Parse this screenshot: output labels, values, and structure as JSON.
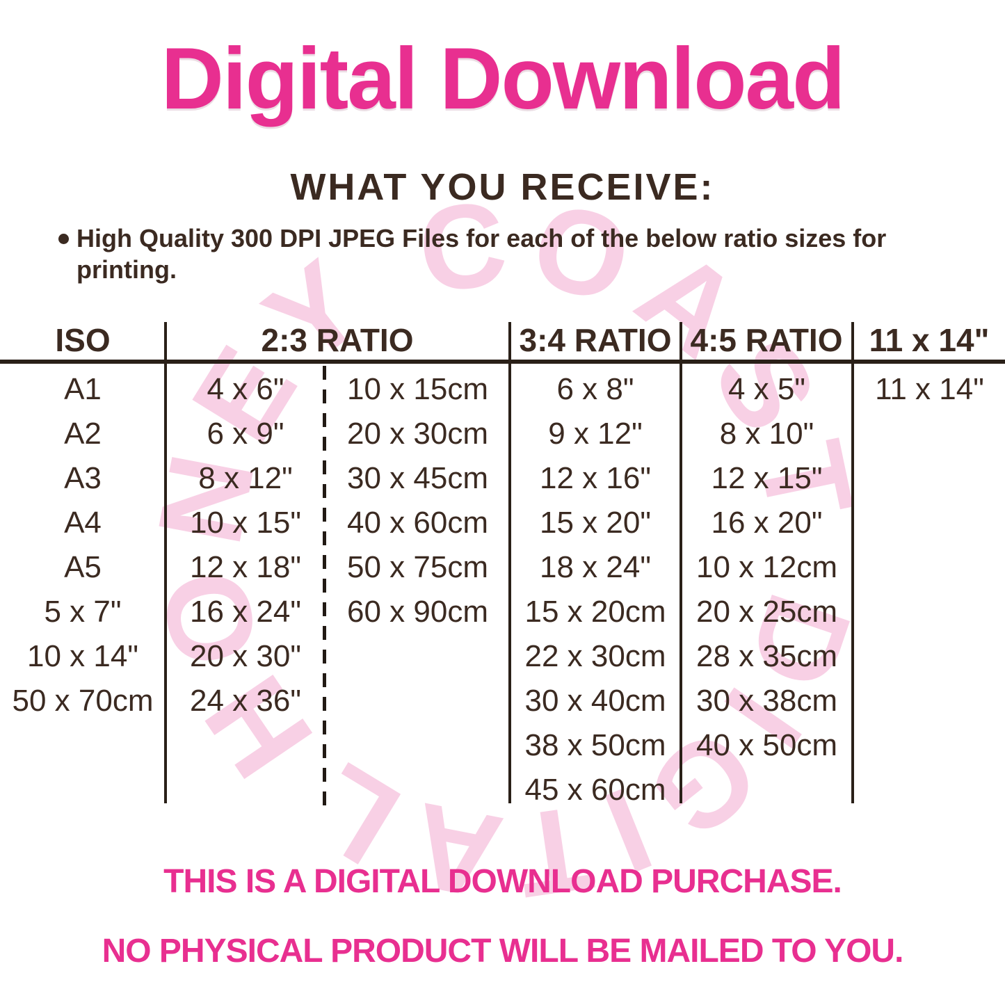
{
  "title": "Digital Download",
  "receive": {
    "heading": "WHAT YOU RECEIVE:",
    "bullet": "High Quality 300 DPI JPEG Files for each of the below ratio sizes for printing."
  },
  "table": {
    "headers": {
      "iso": "ISO",
      "r23": "2:3 RATIO",
      "r34": "3:4 RATIO",
      "r45": "4:5 RATIO",
      "r1114": "11 x 14\""
    },
    "columns": {
      "iso": [
        "A1",
        "A2",
        "A3",
        "A4",
        "A5",
        "5 x 7\"",
        "10 x 14\"",
        "50 x 70cm"
      ],
      "r23_in": [
        "4 x 6\"",
        "6 x 9\"",
        "8 x 12\"",
        "10 x 15\"",
        "12 x 18\"",
        "16 x 24\"",
        "20 x 30\"",
        "24 x 36\""
      ],
      "r23_cm": [
        "10 x 15cm",
        "20 x 30cm",
        "30 x 45cm",
        "40 x 60cm",
        "50 x 75cm",
        "60 x 90cm"
      ],
      "r34": [
        "6 x 8\"",
        "9 x 12\"",
        "12 x 16\"",
        "15 x 20\"",
        "18 x 24\"",
        "15 x 20cm",
        "22 x 30cm",
        "30 x 40cm",
        "38 x 50cm",
        "45 x 60cm"
      ],
      "r45": [
        "4 x 5\"",
        "8 x 10\"",
        "12 x 15\"",
        "16 x 20\"",
        "10 x 12cm",
        "20 x 25cm",
        "28 x 35cm",
        "30 x 38cm",
        "40 x 50cm"
      ],
      "r1114": [
        "11 x 14\""
      ]
    }
  },
  "footer": {
    "line1": "THIS IS A DIGITAL DOWNLOAD PURCHASE.",
    "line2": "NO PHYSICAL PRODUCT WILL BE MAILED TO YOU."
  },
  "watermark": {
    "text": "HONEY COAST DIGITAL"
  },
  "colors": {
    "pink": "#e82f90",
    "brown": "#3b2a21",
    "line": "#2a2018",
    "watermark_pink": "#f8cee4"
  }
}
